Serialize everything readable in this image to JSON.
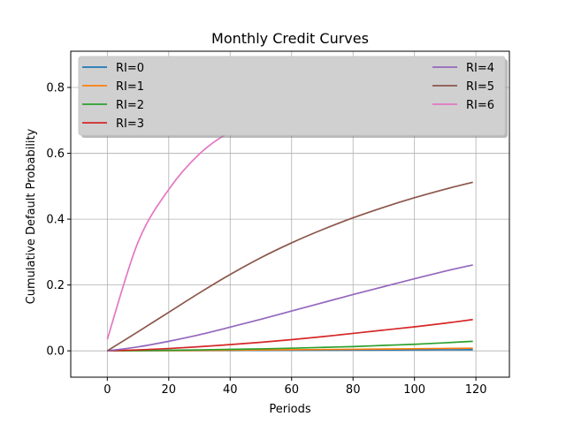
{
  "chart_data": {
    "type": "line",
    "title": "Monthly Credit Curves",
    "xlabel": "Periods",
    "ylabel": "Cumulative Default Probability",
    "xlim": [
      -11.9,
      130.9
    ],
    "ylim": [
      -0.08,
      0.91
    ],
    "xticks": [
      0,
      20,
      40,
      60,
      80,
      100,
      120
    ],
    "yticks": [
      0.0,
      0.2,
      0.4,
      0.6,
      0.8
    ],
    "grid": true,
    "legend": {
      "placement": "top",
      "columns": 2
    },
    "x": [
      0,
      10,
      20,
      30,
      40,
      50,
      60,
      70,
      80,
      90,
      100,
      110,
      119
    ],
    "series": [
      {
        "name": "RI=0",
        "color": "#1f77b4",
        "values": [
          0.0,
          0.0003,
          0.0006,
          0.0009,
          0.0012,
          0.0015,
          0.0018,
          0.0021,
          0.0024,
          0.0027,
          0.003,
          0.0033,
          0.0035
        ]
      },
      {
        "name": "RI=1",
        "color": "#ff7f0e",
        "values": [
          0.0,
          0.0004,
          0.0009,
          0.0015,
          0.002,
          0.0026,
          0.0033,
          0.004,
          0.0047,
          0.0055,
          0.0064,
          0.0073,
          0.008
        ]
      },
      {
        "name": "RI=2",
        "color": "#2ca02c",
        "values": [
          0.0,
          0.0008,
          0.0018,
          0.003,
          0.0045,
          0.006,
          0.008,
          0.0105,
          0.013,
          0.0165,
          0.02,
          0.0245,
          0.029
        ]
      },
      {
        "name": "RI=3",
        "color": "#d62728",
        "values": [
          0.0,
          0.003,
          0.007,
          0.0125,
          0.019,
          0.026,
          0.034,
          0.043,
          0.053,
          0.063,
          0.073,
          0.084,
          0.095
        ]
      },
      {
        "name": "RI=4",
        "color": "#9467bd",
        "values": [
          0.0,
          0.012,
          0.029,
          0.049,
          0.072,
          0.096,
          0.121,
          0.146,
          0.171,
          0.195,
          0.219,
          0.242,
          0.261
        ]
      },
      {
        "name": "RI=5",
        "color": "#8c564b",
        "values": [
          0.0,
          0.058,
          0.117,
          0.176,
          0.232,
          0.283,
          0.328,
          0.368,
          0.404,
          0.436,
          0.465,
          0.491,
          0.512
        ]
      },
      {
        "name": "RI=6",
        "color": "#e377c2",
        "values": [
          0.035,
          0.33,
          0.49,
          0.598,
          0.666,
          0.713,
          0.747,
          0.772,
          0.789,
          0.801,
          0.811,
          0.821,
          0.83
        ]
      }
    ]
  }
}
